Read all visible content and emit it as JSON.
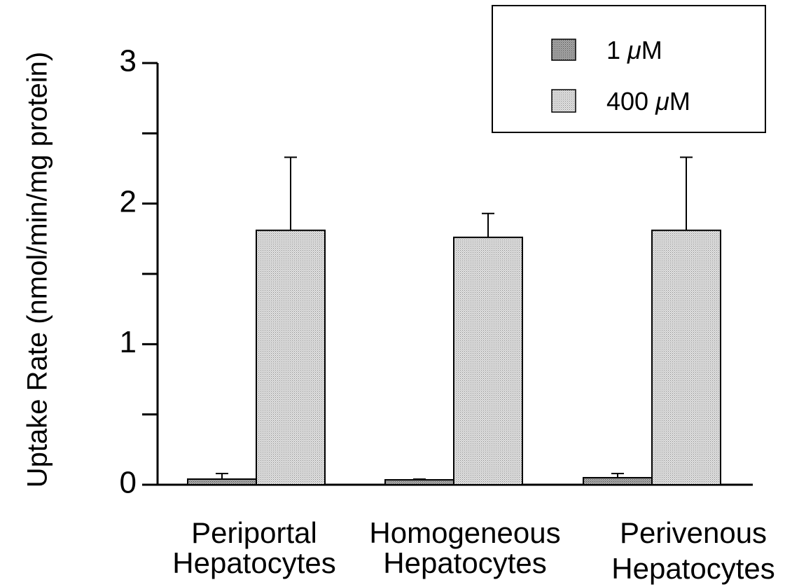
{
  "chart_data": {
    "type": "bar",
    "title": "",
    "ylabel": "Uptake Rate (nmol/min/mg protein)",
    "xlabel": "",
    "ylim": [
      0,
      3
    ],
    "y_ticks": [
      "0",
      "1",
      "2",
      "3"
    ],
    "y_minor_step": 0.5,
    "categories": [
      [
        "Periportal",
        "Hepatocytes"
      ],
      [
        "Homogeneous",
        "Hepatocytes"
      ],
      [
        "Perivenous",
        "Hepatocytes"
      ]
    ],
    "series": [
      {
        "name": "1 μM",
        "values": [
          0.04,
          0.035,
          0.05
        ],
        "errors": [
          0.04,
          0.005,
          0.03
        ],
        "color": "#8c8c8c"
      },
      {
        "name": "400 μM",
        "values": [
          1.81,
          1.76,
          1.81
        ],
        "errors": [
          0.52,
          0.17,
          0.52
        ],
        "color": "#cfcfcf"
      }
    ],
    "legend": {
      "position": "top-right",
      "entries": [
        {
          "prefix": "1 ",
          "mu": "μ",
          "suffix": "M"
        },
        {
          "prefix": "400 ",
          "mu": "μ",
          "suffix": "M"
        }
      ]
    },
    "grid": false
  }
}
